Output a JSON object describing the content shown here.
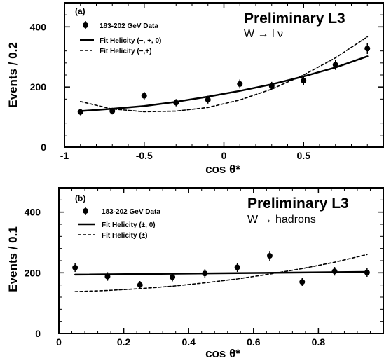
{
  "chart_data": [
    {
      "type": "scatter",
      "panel_label": "(a)",
      "annotation": "Preliminary L3",
      "channel": "W → l ν",
      "xlabel": "cos θ*",
      "ylabel": "Events / 0.2",
      "xlim": [
        -1,
        1
      ],
      "ylim": [
        0,
        480
      ],
      "xticks": [
        -1,
        -0.5,
        0,
        0.5
      ],
      "xtick_labels": [
        "-1",
        "-0.5",
        "0",
        "0.5"
      ],
      "yticks": [
        0,
        200,
        400
      ],
      "ytick_labels": [
        "0",
        "200",
        "400"
      ],
      "legend_position": "top-left",
      "series": [
        {
          "name": "183-202 GeV Data",
          "kind": "points",
          "x": [
            -0.9,
            -0.7,
            -0.5,
            -0.3,
            -0.1,
            0.1,
            0.3,
            0.5,
            0.7,
            0.9
          ],
          "y": [
            117,
            120,
            171,
            148,
            158,
            210,
            203,
            221,
            274,
            328
          ],
          "yerr": [
            11,
            11,
            13,
            12,
            13,
            15,
            14,
            15,
            17,
            18
          ]
        },
        {
          "name": "Fit Helicity (−, +, 0)",
          "kind": "line",
          "style": "solid",
          "x": [
            -0.9,
            -0.7,
            -0.5,
            -0.3,
            -0.1,
            0.1,
            0.3,
            0.5,
            0.7,
            0.9
          ],
          "y": [
            120,
            128,
            137,
            151,
            168,
            187,
            209,
            235,
            265,
            302
          ]
        },
        {
          "name": "Fit Helicity (−,+)",
          "kind": "line",
          "style": "dashed",
          "x": [
            -0.9,
            -0.7,
            -0.5,
            -0.3,
            -0.1,
            0.1,
            0.3,
            0.5,
            0.7,
            0.9
          ],
          "y": [
            152,
            127,
            118,
            120,
            132,
            157,
            193,
            240,
            297,
            367
          ]
        }
      ]
    },
    {
      "type": "scatter",
      "panel_label": "(b)",
      "annotation": "Preliminary L3",
      "channel": "W → hadrons",
      "xlabel": "cos θ*",
      "ylabel": "Events / 0.1",
      "xlim": [
        0,
        1
      ],
      "ylim": [
        0,
        480
      ],
      "xticks": [
        0,
        0.2,
        0.4,
        0.6,
        0.8
      ],
      "xtick_labels": [
        "0",
        "0.2",
        "0.4",
        "0.6",
        "0.8"
      ],
      "yticks": [
        0,
        200,
        400
      ],
      "ytick_labels": [
        "0",
        "200",
        "400"
      ],
      "legend_position": "top-left",
      "series": [
        {
          "name": "183-202 GeV Data",
          "kind": "points",
          "x": [
            0.05,
            0.15,
            0.25,
            0.35,
            0.45,
            0.55,
            0.65,
            0.75,
            0.85,
            0.95
          ],
          "y": [
            217,
            188,
            160,
            186,
            198,
            218,
            256,
            170,
            205,
            201
          ],
          "yerr": [
            14,
            14,
            13,
            14,
            14,
            15,
            16,
            13,
            14,
            14
          ]
        },
        {
          "name": "Fit Helicity (±, 0)",
          "kind": "line",
          "style": "solid",
          "x": [
            0.05,
            0.95
          ],
          "y": [
            194,
            203
          ]
        },
        {
          "name": "Fit Helicity (±)",
          "kind": "line",
          "style": "dashed",
          "x": [
            0.05,
            0.15,
            0.25,
            0.35,
            0.45,
            0.55,
            0.65,
            0.75,
            0.85,
            0.95
          ],
          "y": [
            138,
            142,
            148,
            156,
            167,
            180,
            196,
            214,
            235,
            260
          ]
        }
      ]
    }
  ]
}
